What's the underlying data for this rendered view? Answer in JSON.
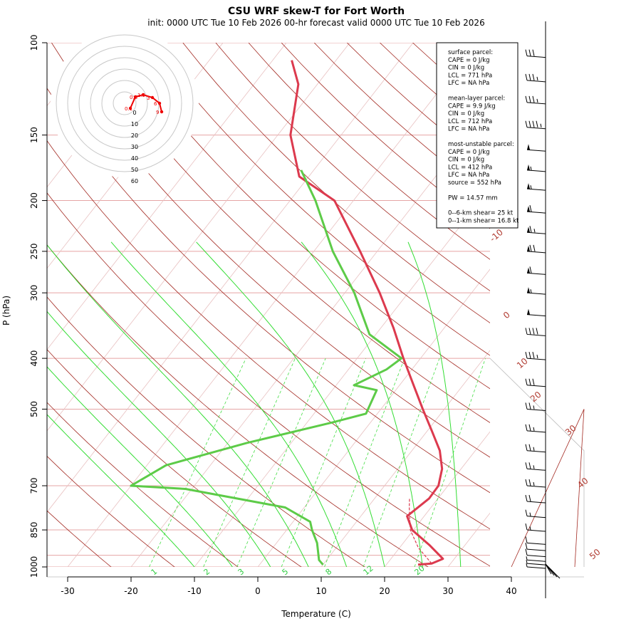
{
  "title": "CSU WRF skew-T for Fort Worth",
  "subtitle": "init: 0000 UTC Tue 10 Feb 2026     00-hr forecast valid 0000 UTC Tue 10 Feb 2026",
  "info_box": {
    "surface": [
      "surface parcel:",
      "CAPE = 0 J/kg",
      "CIN = 0 J/kg",
      "LCL = 771 hPa",
      "LFC = NA hPa"
    ],
    "mean_layer": [
      "mean-layer parcel:",
      "CAPE = 9.9 J/kg",
      "CIN = 0 J/kg",
      "LCL = 712 hPa",
      "LFC = NA hPa"
    ],
    "most_unstable": [
      "most-unstable parcel:",
      "CAPE = 0 J/kg",
      "CIN = 0 J/kg",
      "LCL = 412 hPa",
      "LFC = NA hPa",
      "source = 552 hPa"
    ],
    "pw": "PW =  14.57 mm",
    "shear": [
      "0--6-km shear= 25 kt",
      "0--1-km shear= 16.8 kt"
    ]
  },
  "hodograph": {
    "ring_labels": [
      "0",
      "10",
      "20",
      "30",
      "40",
      "50",
      "60"
    ],
    "point_labels": [
      "0.1",
      "0.6",
      "1.5",
      "3",
      "6",
      "9"
    ]
  },
  "chart_data": {
    "type": "line",
    "xlabel": "Temperature (C)",
    "ylabel": "P (hPa)",
    "xlim": [
      -33,
      44
    ],
    "ylim": [
      1000,
      100
    ],
    "x_ticks": [
      "-30",
      "-20",
      "-10",
      "0",
      "10",
      "20",
      "30",
      "40"
    ],
    "y_ticks": [
      "100",
      "150",
      "200",
      "250",
      "300",
      "400",
      "500",
      "700",
      "850",
      "1000"
    ],
    "y_tick_values": [
      100,
      150,
      200,
      250,
      300,
      400,
      500,
      700,
      850,
      1000
    ],
    "isotherm_labels": [
      "-10",
      "0",
      "10",
      "20",
      "30",
      "40",
      "50"
    ],
    "mixing_ratio_labels": [
      "1",
      "2",
      "3",
      "5",
      "8",
      "12",
      "20"
    ],
    "series": [
      {
        "kind": "temperature",
        "color": "#dc3a4e",
        "points": [
          [
            25.0,
            990
          ],
          [
            27.0,
            985
          ],
          [
            28.2,
            965
          ],
          [
            24.5,
            910
          ],
          [
            19.8,
            850
          ],
          [
            17.3,
            800
          ],
          [
            18.6,
            740
          ],
          [
            18.5,
            700
          ],
          [
            17.0,
            650
          ],
          [
            14.4,
            600
          ],
          [
            10.7,
            550
          ],
          [
            6.6,
            500
          ],
          [
            2.2,
            450
          ],
          [
            -2.7,
            400
          ],
          [
            -8.0,
            350
          ],
          [
            -14.5,
            300
          ],
          [
            -22.7,
            250
          ],
          [
            -33.0,
            200
          ],
          [
            -41.5,
            180
          ],
          [
            -48.0,
            150
          ],
          [
            -53.0,
            120
          ],
          [
            -57.0,
            108
          ]
        ]
      },
      {
        "kind": "dewpoint",
        "color": "#5dcb48",
        "points": [
          [
            10.0,
            990
          ],
          [
            8.8,
            970
          ],
          [
            6.4,
            900
          ],
          [
            4.0,
            850
          ],
          [
            2.7,
            820
          ],
          [
            -3.0,
            770
          ],
          [
            -21.0,
            710
          ],
          [
            -30.0,
            700
          ],
          [
            -27.0,
            640
          ],
          [
            -17.0,
            580
          ],
          [
            -6.0,
            530
          ],
          [
            -1.8,
            510
          ],
          [
            -3.0,
            460
          ],
          [
            -7.2,
            450
          ],
          [
            -4.0,
            420
          ],
          [
            -3.0,
            400
          ],
          [
            -11.0,
            360
          ],
          [
            -18.5,
            300
          ],
          [
            -27.0,
            250
          ],
          [
            -36.0,
            200
          ],
          [
            -42.0,
            175
          ]
        ]
      },
      {
        "kind": "parcel",
        "color": "#dc3a4e",
        "dashed": true,
        "points": [
          [
            27.0,
            985
          ],
          [
            23.0,
            920
          ],
          [
            19.5,
            850
          ],
          [
            16.6,
            771
          ],
          [
            15.5,
            740
          ]
        ]
      }
    ],
    "barbs": [
      {
        "p": 1000,
        "speed": 5
      },
      {
        "p": 985,
        "speed": 5
      },
      {
        "p": 970,
        "speed": 5
      },
      {
        "p": 950,
        "speed": 10
      },
      {
        "p": 925,
        "speed": 10
      },
      {
        "p": 900,
        "speed": 10
      },
      {
        "p": 850,
        "speed": 15
      },
      {
        "p": 800,
        "speed": 15
      },
      {
        "p": 750,
        "speed": 20
      },
      {
        "p": 700,
        "speed": 25
      },
      {
        "p": 650,
        "speed": 25
      },
      {
        "p": 600,
        "speed": 25
      },
      {
        "p": 550,
        "speed": 25
      },
      {
        "p": 500,
        "speed": 25
      },
      {
        "p": 450,
        "speed": 30
      },
      {
        "p": 400,
        "speed": 35
      },
      {
        "p": 360,
        "speed": 40
      },
      {
        "p": 330,
        "speed": 50
      },
      {
        "p": 300,
        "speed": 55
      },
      {
        "p": 275,
        "speed": 60
      },
      {
        "p": 250,
        "speed": 70
      },
      {
        "p": 230,
        "speed": 65
      },
      {
        "p": 210,
        "speed": 60
      },
      {
        "p": 190,
        "speed": 55
      },
      {
        "p": 175,
        "speed": 55
      },
      {
        "p": 160,
        "speed": 50
      },
      {
        "p": 145,
        "speed": 45
      },
      {
        "p": 130,
        "speed": 35
      },
      {
        "p": 118,
        "speed": 35
      },
      {
        "p": 106,
        "speed": 30
      }
    ]
  }
}
